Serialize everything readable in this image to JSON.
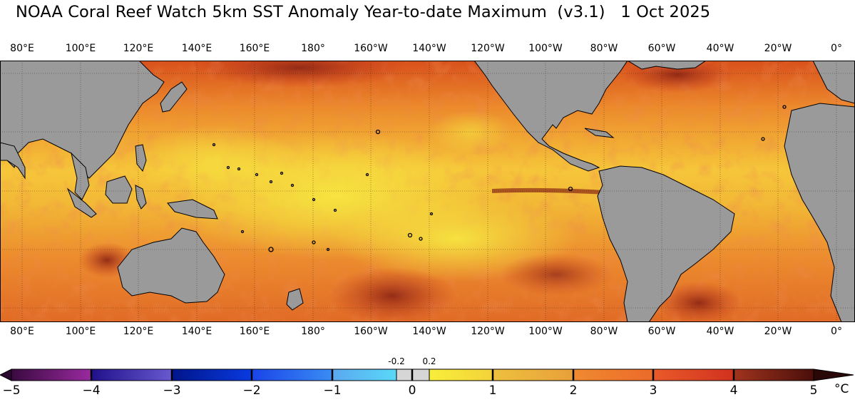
{
  "title": "NOAA Coral Reef Watch 5km SST Anomaly Year-to-date Maximum  (v3.1)   1 Oct 2025",
  "longitude_labels": [
    "80°E",
    "100°E",
    "120°E",
    "140°E",
    "160°E",
    "180°",
    "160°W",
    "140°W",
    "120°W",
    "100°W",
    "80°W",
    "60°W",
    "40°W",
    "20°W",
    "0°"
  ],
  "colorbar": {
    "unit": "°C",
    "tick_labels": [
      "−5",
      "−4",
      "−3",
      "−2",
      "−1",
      "0",
      "1",
      "2",
      "3",
      "4",
      "5"
    ],
    "center_labels": [
      "-0.2",
      "0.2"
    ],
    "colors": {
      "purple": "#6a1b7a",
      "dark_blue": "#1a1a9a",
      "blue": "#0a2fd0",
      "mid_blue": "#2a64f0",
      "light_blue": "#5ab8f2",
      "gray": "#d0d0d0",
      "yellow": "#f4e23c",
      "gold": "#e8b03c",
      "orange": "#ee7a2c",
      "red": "#e0442a",
      "dark_red": "#7a2418"
    }
  },
  "map": {
    "land_color": "#9a9a9a",
    "ocean_base_color": "#f0a030"
  }
}
